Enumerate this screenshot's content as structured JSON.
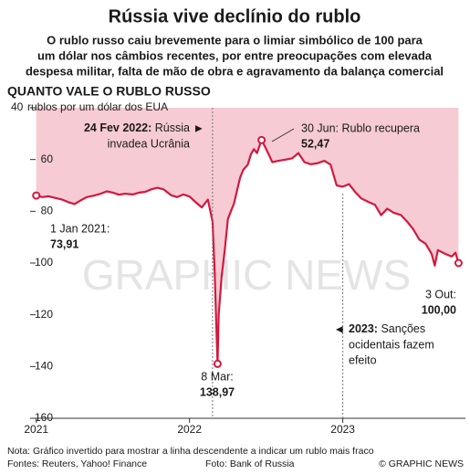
{
  "chart_data": {
    "type": "line",
    "title": "Rússia vive declínio do rublo",
    "subtitle": [
      "O rublo russo caiu brevemente para o limiar simbólico de 100 para",
      "um dólar nos câmbios recentes, por entre preocupações com elevada",
      "despesa militar, falta de mão de obra e agravamento da balança comercial"
    ],
    "section_title": "QUANTO VALE O RUBLO RUSSO",
    "y_label": "rublos por um dólar dos EUA",
    "y_inverted": true,
    "color": "#d4183d",
    "area_color": "#f3b9c6",
    "x": [
      2021.0,
      2021.04,
      2021.08,
      2021.12,
      2021.17,
      2021.21,
      2021.25,
      2021.29,
      2021.33,
      2021.38,
      2021.42,
      2021.46,
      2021.5,
      2021.54,
      2021.58,
      2021.63,
      2021.67,
      2021.71,
      2021.75,
      2021.79,
      2021.83,
      2021.88,
      2021.92,
      2021.96,
      2022.0,
      2022.04,
      2022.08,
      2022.12,
      2022.15,
      2022.165,
      2022.175,
      2022.183,
      2022.19,
      2022.21,
      2022.23,
      2022.25,
      2022.27,
      2022.29,
      2022.31,
      2022.33,
      2022.35,
      2022.38,
      2022.4,
      2022.42,
      2022.44,
      2022.47,
      2022.5,
      2022.54,
      2022.58,
      2022.63,
      2022.67,
      2022.71,
      2022.75,
      2022.79,
      2022.83,
      2022.88,
      2022.92,
      2022.96,
      2023.0,
      2023.04,
      2023.08,
      2023.12,
      2023.17,
      2023.21,
      2023.25,
      2023.29,
      2023.33,
      2023.38,
      2023.42,
      2023.46,
      2023.5,
      2023.54,
      2023.58,
      2023.6,
      2023.62,
      2023.67,
      2023.71,
      2023.735,
      2023.755
    ],
    "values": [
      73.91,
      74.5,
      74.2,
      74.8,
      75.5,
      76.5,
      77.2,
      75.8,
      74.5,
      73.9,
      73.2,
      72.3,
      72.8,
      73.6,
      73.2,
      73.5,
      72.8,
      72.5,
      71.5,
      70.9,
      71.5,
      73.8,
      74.5,
      73.5,
      74.3,
      76.5,
      78.5,
      75.5,
      84,
      105,
      125,
      138.97,
      120,
      105,
      95,
      83,
      80,
      77,
      72,
      67,
      64,
      62,
      58,
      56,
      57.5,
      52.47,
      56,
      61,
      60.5,
      60,
      59.5,
      57.5,
      61,
      61.8,
      61.5,
      60.5,
      62,
      70,
      70.5,
      69.5,
      72.5,
      75,
      76.5,
      77.5,
      81.5,
      79,
      80.5,
      81.5,
      84,
      87,
      91,
      92.5,
      96.5,
      101,
      95,
      96.5,
      97.5,
      96,
      100
    ],
    "xlim": [
      2020.96,
      2023.8
    ],
    "xticks": [
      2021,
      2022,
      2023
    ],
    "ylim": [
      40,
      160
    ],
    "yticks": [
      40,
      60,
      80,
      100,
      120,
      140,
      160
    ],
    "points": [
      {
        "x": 2021.0,
        "value": 73.91,
        "label": "1 Jan 2021:",
        "value_label": "73,91"
      },
      {
        "x": 2022.183,
        "value": 138.97,
        "label": "8 Mar:",
        "value_label": "138,97"
      },
      {
        "x": 2022.47,
        "value": 52.47,
        "label": "30 Jun: Rublo recupera",
        "value_label": "52,47"
      },
      {
        "x": 2023.755,
        "value": 100,
        "label": "3 Out:",
        "value_label": "100,00"
      }
    ],
    "events": [
      {
        "x": 2022.15,
        "bold": "24 Fev 2022:",
        "lines": [
          "Rússia",
          "invadea Ucrânia"
        ]
      },
      {
        "x": 2023.0,
        "bold": "2023:",
        "lines": [
          "Sanções",
          "ocidentais fazem",
          "efeito"
        ]
      }
    ],
    "watermark": "GRAPHIC NEWS",
    "note": "Nota: Gráfico invertido para mostrar a linha descendente a indicar um rublo mais fraco",
    "sources": "Fontes: Reuters, Yahoo! Finance",
    "photo": "Foto: Bank of Russia",
    "credit": "© GRAPHIC NEWS"
  }
}
